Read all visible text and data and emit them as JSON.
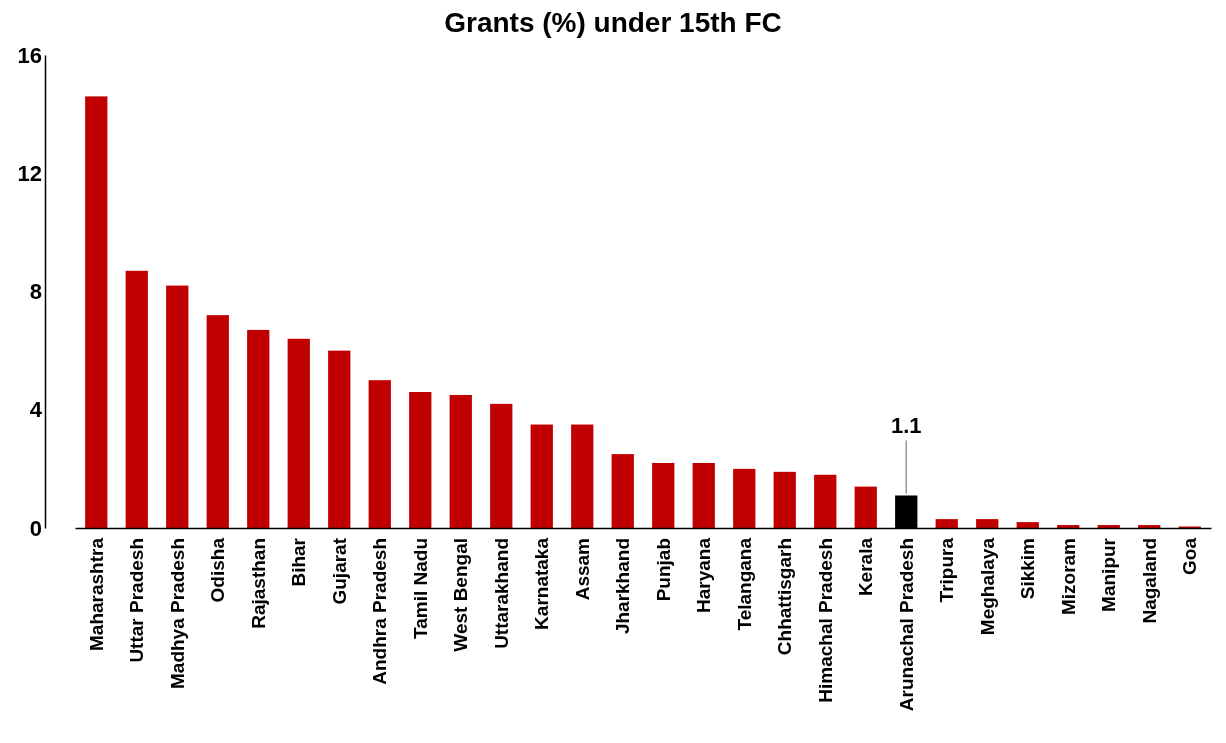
{
  "chart_data": {
    "type": "bar",
    "title": "Grants (%) under 15th FC",
    "categories": [
      "Maharashtra",
      "Uttar Pradesh",
      "Madhya Pradesh",
      "Odisha",
      "Rajasthan",
      "Bihar",
      "Gujarat",
      "Andhra Pradesh",
      "Tamil Nadu",
      "West Bengal",
      "Uttarakhand",
      "Karnataka",
      "Assam",
      "Jharkhand",
      "Punjab",
      "Haryana",
      "Telangana",
      "Chhattisgarh",
      "Himachal Pradesh",
      "Kerala",
      "Arunachal Pradesh",
      "Tripura",
      "Meghalaya",
      "Sikkim",
      "Mizoram",
      "Manipur",
      "Nagaland",
      "Goa"
    ],
    "values": [
      14.6,
      8.7,
      8.2,
      7.2,
      6.7,
      6.4,
      6.0,
      5.0,
      4.6,
      4.5,
      4.2,
      3.5,
      3.5,
      2.5,
      2.2,
      2.2,
      2.0,
      1.9,
      1.8,
      1.4,
      1.1,
      0.3,
      0.3,
      0.2,
      0.1,
      0.1,
      0.1,
      0.05
    ],
    "colors": [
      "#c00000",
      "#c00000",
      "#c00000",
      "#c00000",
      "#c00000",
      "#c00000",
      "#c00000",
      "#c00000",
      "#c00000",
      "#c00000",
      "#c00000",
      "#c00000",
      "#c00000",
      "#c00000",
      "#c00000",
      "#c00000",
      "#c00000",
      "#c00000",
      "#c00000",
      "#c00000",
      "#000000",
      "#c00000",
      "#c00000",
      "#c00000",
      "#c00000",
      "#c00000",
      "#c00000",
      "#c00000"
    ],
    "value_labels": [
      null,
      null,
      null,
      null,
      null,
      null,
      null,
      null,
      null,
      null,
      null,
      null,
      null,
      null,
      null,
      null,
      null,
      null,
      null,
      null,
      "1.1",
      null,
      null,
      null,
      null,
      null,
      null,
      null
    ],
    "ylim": [
      0,
      16
    ],
    "yticks": [
      0,
      4,
      8,
      12,
      16
    ],
    "grid": false
  }
}
